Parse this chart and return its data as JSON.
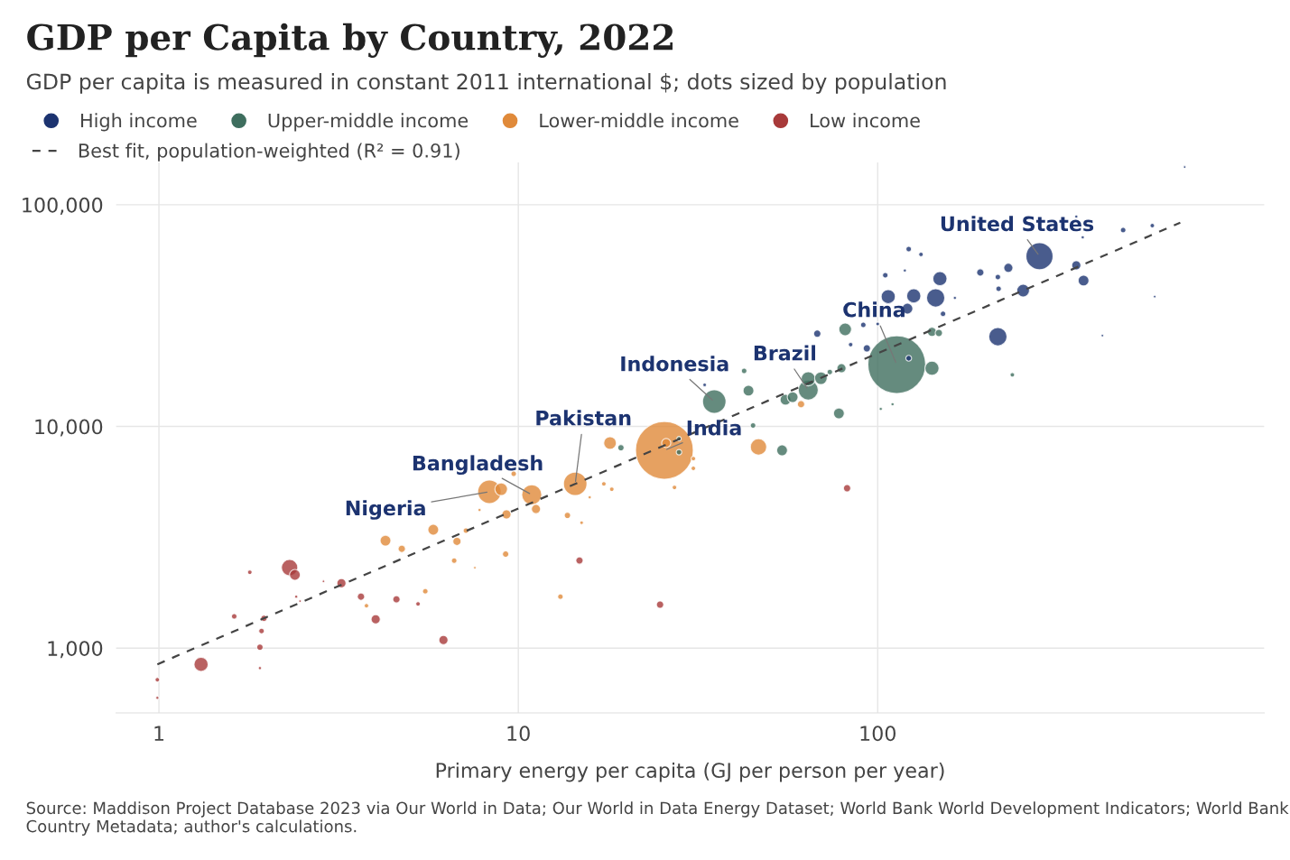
{
  "chart_data": {
    "type": "bubble",
    "title": "GDP per Capita by Country, 2022",
    "subtitle": "GDP per capita is measured in constant 2011 international $; dots sized by population",
    "xlabel": "Primary energy per capita (GJ per person per year)",
    "log": "xy",
    "grid": true,
    "legend": "top left",
    "xlim": [
      0.76,
      1190
    ],
    "ylim": [
      510,
      155000
    ],
    "xticks": [
      1,
      10,
      100
    ],
    "yticks": [
      {
        "value": 1000,
        "label": "1,000"
      },
      {
        "value": 10000,
        "label": "10,000"
      },
      {
        "value": 100000,
        "label": "100,000"
      }
    ],
    "series": [
      {
        "name": "High income",
        "color": "#1c3370",
        "x": [
          282,
          216,
          357,
          374,
          254,
          231,
          193,
          217,
          216,
          149,
          145,
          126,
          107,
          121,
          152,
          164,
          122,
          132,
          105,
          119,
          357,
          372,
          482,
          581,
          715,
          590,
          422,
          67.9,
          93.3,
          91.2,
          84.1,
          100,
          122,
          33
        ],
        "values": [
          58600,
          25400,
          53300,
          45500,
          41000,
          51900,
          49500,
          41800,
          47200,
          46400,
          38000,
          38800,
          38500,
          34000,
          32200,
          38000,
          63100,
          59700,
          48100,
          50500,
          88500,
          71300,
          76900,
          80500,
          148000,
          38500,
          25700,
          26200,
          22500,
          28700,
          23400,
          29000,
          20300,
          15400
        ],
        "sizes": [
          0.22,
          0.1,
          0.025,
          0.035,
          0.048,
          0.025,
          0.016,
          0.009,
          0.009,
          0.06,
          0.1,
          0.06,
          0.06,
          0.035,
          0.009,
          0.003,
          0.009,
          0.006,
          0.009,
          0.003,
          0.003,
          0.003,
          0.009,
          0.006,
          0.002,
          0.002,
          0.002,
          0.016,
          0.016,
          0.009,
          0.006,
          0.004,
          0.01,
          0.004
        ]
      },
      {
        "name": "Upper-middle income",
        "color": "#3e6e5e",
        "x": [
          19.3,
          28,
          28,
          35.1,
          43.7,
          42.5,
          45,
          54.2,
          55.4,
          58,
          64.1,
          64.1,
          69.5,
          73.6,
          79.3,
          78,
          81.2,
          113,
          141.6,
          141.6,
          148,
          237,
          110,
          102
        ],
        "values": [
          8020,
          8810,
          7650,
          12940,
          14500,
          17800,
          10100,
          7800,
          13200,
          13550,
          14600,
          16400,
          16500,
          17600,
          18300,
          11450,
          27400,
          19000,
          18300,
          26700,
          26400,
          17100,
          12600,
          12000
        ],
        "sizes": [
          0.012,
          0.006,
          0.009,
          0.165,
          0.035,
          0.009,
          0.009,
          0.035,
          0.035,
          0.035,
          0.12,
          0.06,
          0.048,
          0.009,
          0.025,
          0.035,
          0.048,
          1.0,
          0.06,
          0.025,
          0.016,
          0.006,
          0.003,
          0.003
        ]
      },
      {
        "name": "Lower-middle income",
        "color": "#e08a3a",
        "x": [
          8.31,
          8.96,
          9.71,
          10.9,
          11.2,
          14.4,
          7.8,
          9.27,
          7.15,
          6.75,
          5.8,
          4.27,
          4.74,
          6.63,
          9.22,
          13.7,
          15,
          5.51,
          3.78,
          13.1,
          7.57,
          18,
          25.5,
          25.8,
          30.7,
          30.7,
          27.2,
          17.3,
          18.2,
          15.8,
          46.6,
          61.2
        ],
        "values": [
          5070,
          5210,
          6110,
          4920,
          4240,
          5510,
          4200,
          4010,
          3390,
          3030,
          3420,
          3055,
          2805,
          2480,
          2655,
          3970,
          3680,
          1806,
          1553,
          1707,
          2305,
          8420,
          7800,
          8420,
          7160,
          6470,
          5310,
          5510,
          5210,
          4790,
          8090,
          12600
        ],
        "sizes": [
          0.165,
          0.048,
          0.009,
          0.12,
          0.025,
          0.165,
          0.003,
          0.025,
          0.009,
          0.02,
          0.035,
          0.035,
          0.016,
          0.009,
          0.012,
          0.012,
          0.004,
          0.009,
          0.006,
          0.009,
          0.002,
          0.048,
          1.0,
          0.025,
          0.006,
          0.006,
          0.006,
          0.006,
          0.006,
          0.003,
          0.08,
          0.016
        ]
      },
      {
        "name": "Low income",
        "color": "#a83a3a",
        "x": [
          0.99,
          0.99,
          1.31,
          1.62,
          1.79,
          1.93,
          1.91,
          1.91,
          1.96,
          2.31,
          2.39,
          2.41,
          2.47,
          2.87,
          3.22,
          3.65,
          4.01,
          4.58,
          5.26,
          6.19,
          14.8,
          24.8,
          82.2
        ],
        "values": [
          720,
          597,
          845,
          1390,
          2200,
          1195,
          1010,
          813,
          1363,
          2305,
          2140,
          1707,
          1630,
          2000,
          1963,
          1707,
          1349,
          1660,
          1583,
          1088,
          2484,
          1570,
          5260
        ],
        "sizes": [
          0.006,
          0.003,
          0.06,
          0.009,
          0.006,
          0.009,
          0.012,
          0.003,
          0.012,
          0.08,
          0.035,
          0.003,
          0.002,
          0.002,
          0.025,
          0.016,
          0.025,
          0.016,
          0.006,
          0.025,
          0.016,
          0.016,
          0.016
        ]
      },
      {
        "name": "Best fit, population-weighted (R² = 0.91)",
        "type": "line",
        "color": "#444444",
        "line_style": "dashed",
        "x": [
          0.99,
          695
        ],
        "values": [
          845,
          83000
        ]
      }
    ],
    "annotations": [
      {
        "text": "United States",
        "x": 282,
        "y": 58600
      },
      {
        "text": "China",
        "x": 113,
        "y": 19000
      },
      {
        "text": "Brazil",
        "x": 64.1,
        "y": 14600
      },
      {
        "text": "Indonesia",
        "x": 35.1,
        "y": 12940
      },
      {
        "text": "India",
        "x": 25.5,
        "y": 7800
      },
      {
        "text": "Pakistan",
        "x": 14.4,
        "y": 5510
      },
      {
        "text": "Bangladesh",
        "x": 10.9,
        "y": 4920
      },
      {
        "text": "Nigeria",
        "x": 8.31,
        "y": 5070
      },
      "Source: Maddison Project Database 2023 via Our World in Data; Our World in Data Energy Dataset; World Bank World Development Indicators; World Bank Country Metadata; author's calculations."
    ]
  }
}
